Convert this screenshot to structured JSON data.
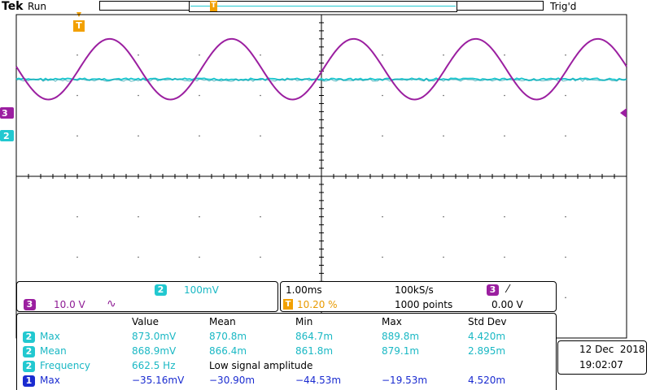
{
  "status_bar": {
    "brand": "Tek",
    "run_state": "Run",
    "trigger_state": "Trig'd",
    "trigger_marker": "T"
  },
  "channel_markers": {
    "ch3_label": "3",
    "ch2_label": "2"
  },
  "colors": {
    "ch1": "#1a2bd0",
    "ch2": "#22c8d0",
    "ch3": "#9b1fa0",
    "trigger": "#f2a000"
  },
  "vertical_panel": {
    "ch2_badge": "2",
    "ch2_scale": "100mV",
    "ch3_badge": "3",
    "ch3_scale": "10.0 V",
    "ch3_coupling_icon": "ac-coupling-icon",
    "ch3_coupling_glyph": "∿"
  },
  "timebase_panel": {
    "time_per_div": "1.00ms",
    "sample_rate": "100kS/s",
    "trigger_badge": "T",
    "trigger_position": "10.20 %",
    "record_length": "1000 points",
    "trigger_source_badge": "3",
    "trigger_slope_glyph": "⁄",
    "trigger_level": "0.00 V"
  },
  "measurements": {
    "headers": [
      "Value",
      "Mean",
      "Min",
      "Max",
      "Std Dev"
    ],
    "rows": [
      {
        "channel": "2",
        "name": "Max",
        "cells": [
          "873.0mV",
          "870.8m",
          "864.7m",
          "889.8m",
          "4.420m"
        ]
      },
      {
        "channel": "2",
        "name": "Mean",
        "cells": [
          "868.9mV",
          "866.4m",
          "861.8m",
          "879.1m",
          "2.895m"
        ]
      },
      {
        "channel": "2",
        "name": "Frequency",
        "cells": [
          "662.5 Hz",
          "Low signal amplitude"
        ]
      },
      {
        "channel": "1",
        "name": "Max",
        "cells": [
          "−35.16mV",
          "−30.90m",
          "−44.53m",
          "−19.53m",
          "4.520m"
        ]
      }
    ]
  },
  "datetime": {
    "date": "12 Dec  2018",
    "time": "19:02:07"
  },
  "waveforms": {
    "ch3": {
      "shape": "sine",
      "periods_on_screen": 5.0,
      "amplitude_div": 0.75,
      "offset_div": 1.35,
      "phase_deg": 175
    },
    "ch2": {
      "shape": "flat-noisy",
      "offset_div": 1.6
    },
    "graticule": {
      "h_divisions": 10,
      "v_divisions": 8
    }
  }
}
